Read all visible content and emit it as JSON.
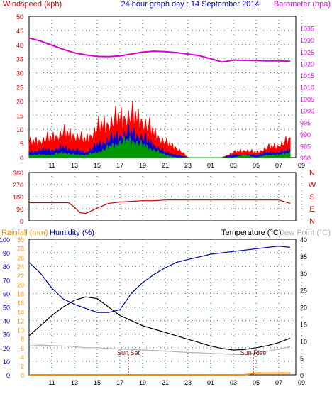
{
  "chart_data": [
    {
      "type": "line",
      "title": "24 hour graph day : 14 September 2014",
      "ylabel_left": "Windspeed (kph)",
      "ylabel_right": "Barometer (hpa)",
      "left_ticks": [
        0,
        5,
        10,
        15,
        20,
        25,
        30,
        35,
        40,
        45,
        50
      ],
      "right_ticks": [
        980,
        985,
        990,
        995,
        1000,
        1005,
        1010,
        1015,
        1020,
        1025,
        1030,
        1035
      ],
      "ylim_left": [
        0,
        50
      ],
      "ylim_right": [
        980,
        1040
      ],
      "x_ticks": [
        "11",
        "13",
        "15",
        "17",
        "19",
        "21",
        "23",
        "01",
        "03",
        "05",
        "07",
        "09"
      ],
      "grid": true,
      "series": [
        {
          "name": "Barometer (hpa)",
          "color": "#d400d4",
          "x": [
            0,
            2,
            4,
            6,
            8,
            10,
            12,
            14,
            16,
            18,
            20,
            22,
            24,
            26,
            28,
            30,
            32,
            34,
            36,
            38,
            40,
            42,
            44,
            46
          ],
          "values": [
            1030.8,
            1029.5,
            1027.8,
            1026.0,
            1024.5,
            1023.6,
            1023.0,
            1022.9,
            1023.2,
            1024.0,
            1024.8,
            1025.2,
            1025.0,
            1024.6,
            1024.0,
            1023.3,
            1022.0,
            1020.6,
            1021.4,
            1021.3,
            1021.2,
            1021.1,
            1021.1,
            1020.9
          ]
        },
        {
          "color": "#ff0000",
          "x": [
            0,
            2,
            4,
            6,
            8,
            10,
            12,
            14,
            16,
            18,
            20,
            22,
            24,
            26,
            28,
            30,
            32,
            34,
            36,
            38,
            40,
            42,
            44,
            46
          ],
          "values": [
            6,
            7,
            8,
            10,
            9,
            7,
            12,
            14,
            16,
            17,
            15,
            10,
            6,
            4,
            0,
            0,
            0,
            0,
            2,
            3,
            2,
            4,
            5,
            7
          ]
        },
        {
          "color": "#0000cc",
          "x": [
            0,
            2,
            4,
            6,
            8,
            10,
            12,
            14,
            16,
            18,
            20,
            22,
            24,
            26,
            28,
            30,
            32,
            34,
            36,
            38,
            40,
            42,
            44,
            46
          ],
          "values": [
            2,
            3,
            3,
            4,
            3,
            2,
            5,
            7,
            9,
            10,
            8,
            5,
            2,
            1,
            0,
            0,
            0,
            0,
            1,
            1,
            1,
            2,
            2,
            3
          ]
        },
        {
          "color": "#009900",
          "x": [
            0,
            2,
            4,
            6,
            8,
            10,
            12,
            14,
            16,
            18,
            20,
            22,
            24,
            26,
            28,
            30,
            32,
            34,
            36,
            38,
            40,
            42,
            44,
            46
          ],
          "values": [
            1,
            1,
            1,
            2,
            1,
            1,
            2,
            4,
            6,
            7,
            5,
            3,
            1,
            0,
            0,
            0,
            0,
            0,
            0,
            1,
            0,
            1,
            1,
            2
          ]
        }
      ]
    },
    {
      "type": "line",
      "ylabel_left": "",
      "left_ticks": [
        0,
        90,
        180,
        270,
        360
      ],
      "right_labels": [
        "N",
        "W",
        "S",
        "E",
        "N"
      ],
      "ylim_left": [
        0,
        360
      ],
      "x_ticks": [
        "11",
        "13",
        "15",
        "17",
        "19",
        "21",
        "23",
        "01",
        "03",
        "05",
        "07",
        "09"
      ],
      "grid": true,
      "series": [
        {
          "color": "#cc0000",
          "x": [
            0,
            2,
            4,
            6,
            7,
            8,
            9,
            10,
            12,
            14,
            16,
            18,
            20,
            22,
            24,
            26,
            28,
            30,
            32,
            34,
            36,
            38,
            40,
            42,
            44,
            46
          ],
          "values": [
            135,
            135,
            135,
            135,
            135,
            100,
            60,
            55,
            95,
            130,
            140,
            145,
            150,
            150,
            155,
            155,
            155,
            155,
            155,
            155,
            155,
            155,
            155,
            155,
            155,
            130
          ]
        }
      ]
    },
    {
      "type": "line",
      "ylabel_left": "Rainfall (mm)",
      "ylabel_humidity": "Humidity (%)",
      "ylabel_right": "Temperature (°C)",
      "ylabel_dewpoint": "Dew Point (°C)",
      "humidity_ticks": [
        0,
        10,
        20,
        30,
        40,
        50,
        60,
        70,
        80,
        90,
        100
      ],
      "rain_ticks": [
        0,
        2,
        4,
        6,
        8,
        10,
        12,
        14,
        16,
        18,
        20,
        22,
        24,
        26,
        28,
        30
      ],
      "temp_ticks": [
        0,
        5,
        10,
        15,
        20,
        25,
        30,
        35,
        40
      ],
      "ylim_humidity": [
        0,
        100
      ],
      "ylim_temp": [
        0,
        40
      ],
      "x_ticks": [
        "11",
        "13",
        "15",
        "17",
        "19",
        "21",
        "23",
        "01",
        "03",
        "05",
        "07",
        "09"
      ],
      "annotations": [
        "Sun Set",
        "Sun Rise"
      ],
      "grid": true,
      "series": [
        {
          "color": "#0000aa",
          "x": [
            0,
            2,
            4,
            6,
            8,
            10,
            12,
            14,
            16,
            18,
            20,
            22,
            24,
            26,
            28,
            30,
            32,
            34,
            36,
            38,
            40,
            42,
            44,
            46
          ],
          "values": [
            83,
            75,
            64,
            56,
            52,
            49,
            46,
            46,
            48,
            60,
            68,
            74,
            79,
            83,
            85,
            87,
            89,
            90,
            91,
            92,
            93,
            94,
            95,
            94
          ]
        },
        {
          "color": "#000000",
          "x": [
            0,
            2,
            4,
            6,
            8,
            10,
            12,
            14,
            16,
            18,
            20,
            22,
            24,
            26,
            28,
            30,
            32,
            34,
            36,
            38,
            40,
            42,
            44,
            46
          ],
          "values": [
            11.5,
            14.5,
            17.5,
            20.0,
            22.0,
            23.0,
            22.5,
            20.0,
            17.5,
            16.0,
            14.5,
            13.5,
            12.5,
            11.5,
            10.5,
            9.5,
            8.5,
            7.8,
            7.3,
            7.5,
            8.0,
            8.6,
            9.5,
            10.8
          ]
        },
        {
          "color": "#b4b4b4",
          "x": [
            0,
            2,
            4,
            6,
            8,
            10,
            12,
            14,
            16,
            18,
            20,
            22,
            24,
            26,
            28,
            30,
            32,
            34,
            36,
            38,
            40,
            42,
            44,
            46
          ],
          "values": [
            8.5,
            8.8,
            8.6,
            8.5,
            8.3,
            8.0,
            8.0,
            7.8,
            7.6,
            7.5,
            7.3,
            7.2,
            7.0,
            6.8,
            6.6,
            6.5,
            6.3,
            6.2,
            6.0,
            6.0,
            6.5,
            7.0,
            7.6,
            8.3
          ]
        },
        {
          "color": "#ff8c00",
          "x": [
            0,
            4,
            8,
            12,
            16,
            20,
            24,
            28,
            32,
            36,
            38,
            39,
            40,
            42,
            44,
            46
          ],
          "values": [
            0,
            0,
            0,
            0,
            0,
            0,
            0,
            0,
            0,
            0,
            0,
            0.2,
            0.4,
            0.4,
            0.4,
            0.4
          ]
        }
      ]
    }
  ]
}
